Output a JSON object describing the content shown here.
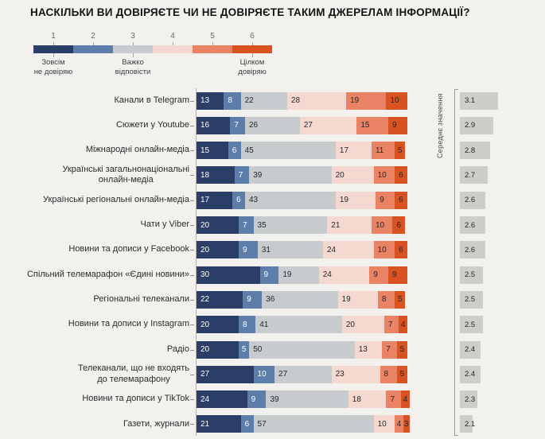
{
  "title": "НАСКІЛЬКИ ВИ ДОВІРЯЄТЕ ЧИ НЕ ДОВІРЯЄТЕ ТАКИМ ДЖЕРЕЛАМ ІНФОРМАЦІЇ?",
  "mean_label": "Середнє значення",
  "legend": {
    "scale": [
      {
        "value": "1",
        "color": "#2b3e68",
        "meaning": "Зовсім\nне довіряю"
      },
      {
        "value": "2",
        "color": "#5d7eab"
      },
      {
        "value": "3",
        "color": "#c8cbce",
        "meaning": "Важко\nвідповісти"
      },
      {
        "value": "4",
        "color": "#f5d9d0"
      },
      {
        "value": "5",
        "color": "#ea8264"
      },
      {
        "value": "6",
        "color": "#d95222",
        "meaning": "Цілком\nдовіряю"
      }
    ]
  },
  "chart_data": {
    "type": "bar",
    "orientation": "horizontal-stacked",
    "title": "НАСКІЛЬКИ ВИ ДОВІРЯЄТЕ ЧИ НЕ ДОВІРЯЄТЕ ТАКИМ ДЖЕРЕЛАМ ІНФОРМАЦІЇ?",
    "unit": "percent",
    "scale_range": [
      1,
      6
    ],
    "categories": [
      "Канали в Telegram",
      "Сюжети у Youtube",
      "Міжнародні онлайн-медіа",
      "Українські загальнонаціональні\nонлайн-медіа",
      "Українські регіональні онлайн-медіа",
      "Чати у Viber",
      "Новини та дописи у Facebook",
      "Спільний телемарафон «Єдині новини»",
      "Регіональні телеканали",
      "Новини та дописи у Instagram",
      "Радіо",
      "Телеканали, що не входять\nдо телемарафону",
      "Новини та дописи у TikTok",
      "Газети, журнали"
    ],
    "series": [
      {
        "name": "1",
        "values": [
          13,
          16,
          15,
          18,
          17,
          20,
          20,
          30,
          22,
          20,
          20,
          27,
          24,
          21
        ]
      },
      {
        "name": "2",
        "values": [
          8,
          7,
          6,
          7,
          6,
          7,
          9,
          9,
          9,
          8,
          5,
          10,
          9,
          6
        ]
      },
      {
        "name": "3",
        "values": [
          22,
          26,
          45,
          39,
          43,
          35,
          31,
          19,
          36,
          41,
          50,
          27,
          39,
          57
        ]
      },
      {
        "name": "4",
        "values": [
          28,
          27,
          17,
          20,
          19,
          21,
          24,
          24,
          19,
          20,
          13,
          23,
          18,
          10
        ]
      },
      {
        "name": "5",
        "values": [
          19,
          15,
          11,
          10,
          9,
          10,
          10,
          9,
          8,
          7,
          7,
          8,
          7,
          4
        ]
      },
      {
        "name": "6",
        "values": [
          10,
          9,
          5,
          6,
          6,
          6,
          6,
          9,
          5,
          4,
          5,
          5,
          4,
          3
        ]
      }
    ],
    "means": [
      3.1,
      2.9,
      2.8,
      2.7,
      2.6,
      2.6,
      2.6,
      2.5,
      2.5,
      2.5,
      2.4,
      2.4,
      2.3,
      2.1
    ],
    "means_column_title": "Середнє значення",
    "legend_position": "top-left"
  }
}
